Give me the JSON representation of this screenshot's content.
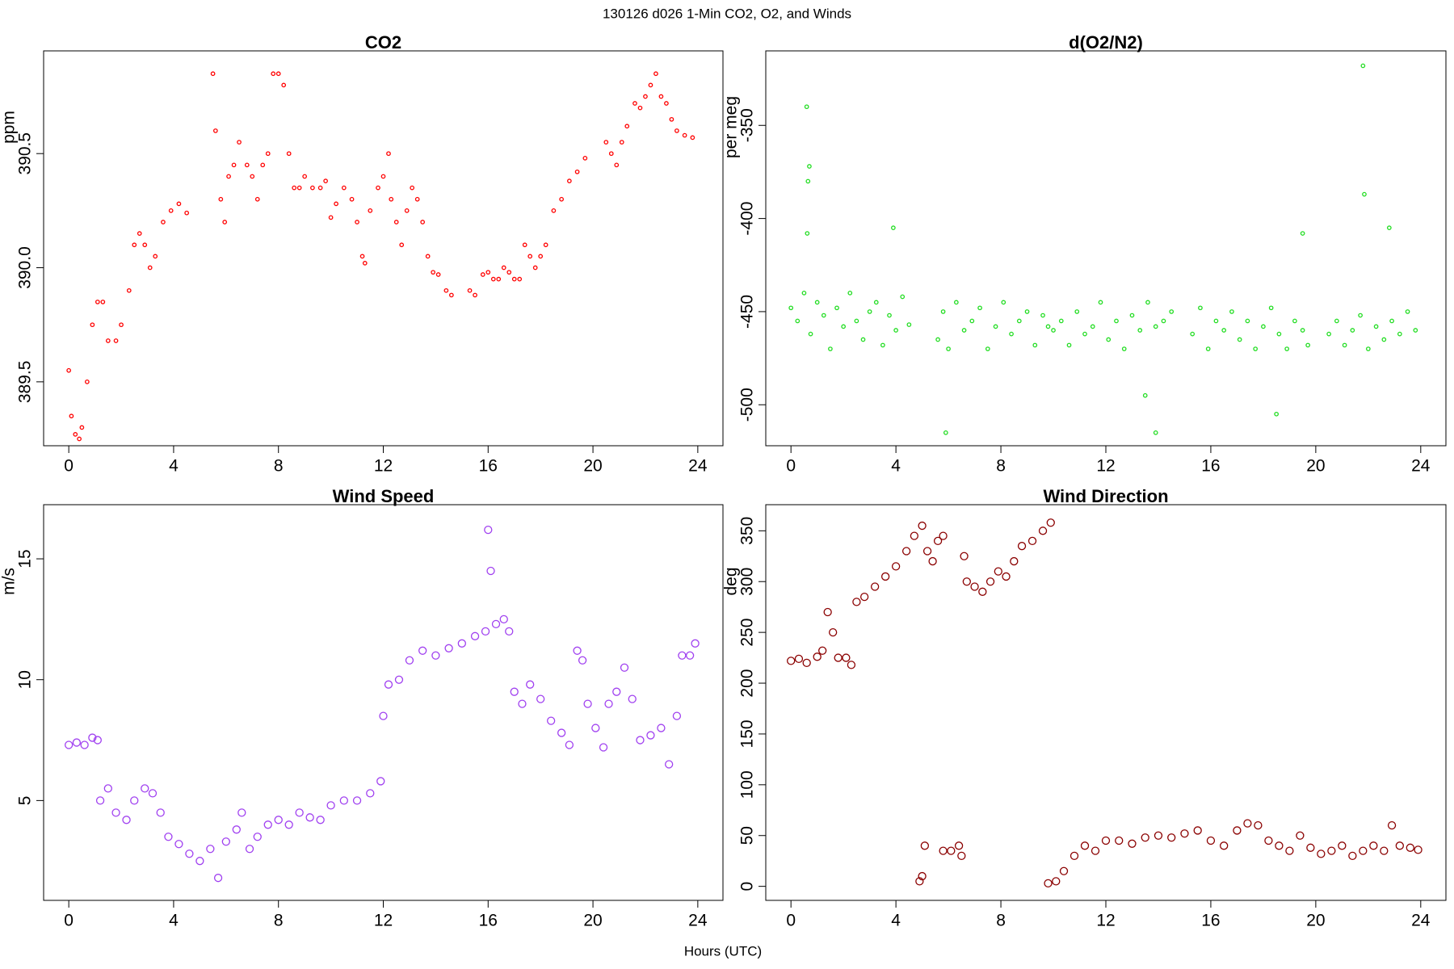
{
  "title": "130126   d026   1-Min CO2, O2, and Winds",
  "xlabel": "Hours (UTC)",
  "chart_data": [
    {
      "type": "scatter",
      "title": "CO2",
      "ylabel": "ppm",
      "color": "#ff0000",
      "marker_size": 2.2,
      "xlim": [
        -0.96,
        24.96
      ],
      "ylim": [
        389.22,
        390.95
      ],
      "xticks": [
        0,
        4,
        8,
        12,
        16,
        20,
        24
      ],
      "yticks": [
        389.5,
        {
          "value": 390,
          "label": "390.0"
        },
        390.5
      ],
      "x": [
        0,
        0.1,
        0.25,
        0.4,
        0.5,
        0.7,
        0.9,
        1.1,
        1.3,
        1.5,
        1.8,
        2.0,
        2.3,
        2.5,
        2.7,
        2.9,
        3.1,
        3.3,
        3.6,
        3.9,
        4.2,
        4.5,
        5.5,
        5.6,
        5.8,
        5.95,
        6.1,
        6.3,
        6.5,
        6.8,
        7.0,
        7.2,
        7.4,
        7.6,
        7.8,
        8.0,
        8.2,
        8.4,
        8.6,
        8.8,
        9.0,
        9.3,
        9.6,
        9.8,
        10.0,
        10.2,
        10.5,
        10.8,
        11.0,
        11.2,
        11.3,
        11.5,
        11.8,
        12.0,
        12.2,
        12.3,
        12.5,
        12.7,
        12.9,
        13.1,
        13.3,
        13.5,
        13.7,
        13.9,
        14.1,
        14.4,
        14.6,
        15.3,
        15.5,
        15.8,
        16.0,
        16.2,
        16.4,
        16.6,
        16.8,
        17.0,
        17.2,
        17.4,
        17.6,
        17.8,
        18.0,
        18.2,
        18.5,
        18.8,
        19.1,
        19.4,
        19.7,
        20.5,
        20.7,
        20.9,
        21.1,
        21.3,
        21.6,
        21.8,
        22.0,
        22.2,
        22.4,
        22.6,
        22.8,
        23.0,
        23.2,
        23.5,
        23.8
      ],
      "values": [
        389.55,
        389.35,
        389.27,
        389.25,
        389.3,
        389.5,
        389.75,
        389.85,
        389.85,
        389.68,
        389.68,
        389.75,
        389.9,
        390.1,
        390.15,
        390.1,
        390.0,
        390.05,
        390.2,
        390.25,
        390.28,
        390.24,
        390.85,
        390.6,
        390.3,
        390.2,
        390.4,
        390.45,
        390.55,
        390.45,
        390.4,
        390.3,
        390.45,
        390.5,
        390.85,
        390.85,
        390.8,
        390.5,
        390.35,
        390.35,
        390.4,
        390.35,
        390.35,
        390.38,
        390.22,
        390.28,
        390.35,
        390.3,
        390.2,
        390.05,
        390.02,
        390.25,
        390.35,
        390.4,
        390.5,
        390.3,
        390.2,
        390.1,
        390.25,
        390.35,
        390.3,
        390.2,
        390.05,
        389.98,
        389.97,
        389.9,
        389.88,
        389.9,
        389.88,
        389.97,
        389.98,
        389.95,
        389.95,
        390.0,
        389.98,
        389.95,
        389.95,
        390.1,
        390.05,
        390.0,
        390.05,
        390.1,
        390.25,
        390.3,
        390.38,
        390.42,
        390.48,
        390.55,
        390.5,
        390.45,
        390.55,
        390.62,
        390.72,
        390.7,
        390.75,
        390.8,
        390.85,
        390.75,
        390.72,
        390.65,
        390.6,
        390.58,
        390.57
      ]
    },
    {
      "type": "scatter",
      "title": "d(O2/N2)",
      "ylabel": "per meg",
      "color": "#22dd22",
      "marker_size": 2.2,
      "xlim": [
        -0.96,
        24.96
      ],
      "ylim": [
        -522,
        -310
      ],
      "xticks": [
        0,
        4,
        8,
        12,
        16,
        20,
        24
      ],
      "yticks": [
        -500,
        -450,
        -400,
        -350
      ],
      "x": [
        0,
        0.25,
        0.5,
        0.75,
        1.0,
        1.25,
        1.5,
        1.75,
        2.0,
        2.25,
        2.5,
        2.75,
        3.0,
        3.25,
        3.5,
        3.75,
        4.0,
        4.25,
        4.5,
        0.6,
        0.7,
        0.65,
        0.62,
        3.9,
        5.6,
        5.8,
        6.0,
        6.3,
        6.6,
        6.9,
        7.2,
        7.5,
        7.8,
        8.1,
        8.4,
        8.7,
        9.0,
        9.3,
        9.6,
        9.8,
        5.9,
        10.0,
        10.3,
        10.6,
        10.9,
        11.2,
        11.5,
        11.8,
        12.1,
        12.4,
        12.7,
        13.0,
        13.3,
        13.6,
        13.9,
        14.2,
        14.5,
        13.9,
        13.5,
        15.3,
        15.6,
        15.9,
        16.2,
        16.5,
        16.8,
        17.1,
        17.4,
        17.7,
        18.0,
        18.3,
        18.6,
        18.9,
        19.2,
        19.5,
        19.7,
        18.5,
        19.5,
        20.5,
        20.8,
        21.1,
        21.4,
        21.7,
        22.0,
        22.3,
        22.6,
        22.9,
        23.2,
        23.5,
        23.8,
        21.8,
        21.85,
        22.8
      ],
      "values": [
        -448,
        -455,
        -440,
        -462,
        -445,
        -452,
        -470,
        -448,
        -458,
        -440,
        -455,
        -465,
        -450,
        -445,
        -468,
        -452,
        -460,
        -442,
        -457,
        -340,
        -372,
        -380,
        -408,
        -405,
        -465,
        -450,
        -470,
        -445,
        -460,
        -455,
        -448,
        -470,
        -458,
        -445,
        -462,
        -455,
        -450,
        -468,
        -452,
        -458,
        -515,
        -460,
        -455,
        -468,
        -450,
        -462,
        -458,
        -445,
        -465,
        -455,
        -470,
        -452,
        -460,
        -445,
        -458,
        -455,
        -450,
        -515,
        -495,
        -462,
        -448,
        -470,
        -455,
        -460,
        -450,
        -465,
        -455,
        -470,
        -458,
        -448,
        -462,
        -470,
        -455,
        -460,
        -468,
        -505,
        -408,
        -462,
        -455,
        -468,
        -460,
        -452,
        -470,
        -458,
        -465,
        -455,
        -462,
        -450,
        -460,
        -318,
        -387,
        -405
      ]
    },
    {
      "type": "scatter",
      "title": "Wind Speed",
      "ylabel": "m/s",
      "color": "#a040f0",
      "marker_size": 4.5,
      "xlim": [
        -0.96,
        24.96
      ],
      "ylim": [
        0.87,
        17.24
      ],
      "xticks": [
        0,
        4,
        8,
        12,
        16,
        20,
        24
      ],
      "yticks": [
        5,
        10,
        15
      ],
      "x": [
        0,
        0.3,
        0.6,
        0.9,
        1.1,
        1.2,
        1.5,
        1.8,
        2.2,
        2.5,
        2.9,
        3.2,
        3.5,
        3.8,
        4.2,
        4.6,
        5.0,
        5.4,
        5.7,
        6.0,
        6.4,
        6.6,
        6.9,
        7.2,
        7.6,
        8.0,
        8.4,
        8.8,
        9.2,
        9.6,
        10.0,
        10.5,
        11.0,
        11.5,
        11.9,
        12.0,
        12.2,
        12.6,
        13.0,
        13.5,
        14.0,
        14.5,
        15.0,
        15.5,
        15.9,
        16.0,
        16.1,
        16.3,
        16.6,
        16.8,
        17.0,
        17.3,
        17.6,
        18.0,
        18.4,
        18.8,
        19.1,
        19.4,
        19.6,
        19.8,
        20.1,
        20.4,
        20.6,
        20.9,
        21.2,
        21.5,
        21.8,
        22.2,
        22.6,
        22.9,
        23.2,
        23.4,
        23.7,
        23.9
      ],
      "values": [
        7.3,
        7.4,
        7.3,
        7.6,
        7.5,
        5.0,
        5.5,
        4.5,
        4.2,
        5.0,
        5.5,
        5.3,
        4.5,
        3.5,
        3.2,
        2.8,
        2.5,
        3.0,
        1.8,
        3.3,
        3.8,
        4.5,
        3.0,
        3.5,
        4.0,
        4.2,
        4.0,
        4.5,
        4.3,
        4.2,
        4.8,
        5.0,
        5.0,
        5.3,
        5.8,
        8.5,
        9.8,
        10.0,
        10.8,
        11.2,
        11.0,
        11.3,
        11.5,
        11.8,
        12.0,
        16.2,
        14.5,
        12.3,
        12.5,
        12.0,
        9.5,
        9.0,
        9.8,
        9.2,
        8.3,
        7.8,
        7.3,
        11.2,
        10.8,
        9.0,
        8.0,
        7.2,
        9.0,
        9.5,
        10.5,
        9.2,
        7.5,
        7.7,
        8.0,
        6.5,
        8.5,
        11.0,
        11.0,
        11.5
      ]
    },
    {
      "type": "scatter",
      "title": "Wind Direction",
      "ylabel": "deg",
      "color": "#8b0000",
      "marker_size": 4.5,
      "xlim": [
        -0.96,
        24.96
      ],
      "ylim": [
        -13.8,
        375.7
      ],
      "xticks": [
        0,
        4,
        8,
        12,
        16,
        20,
        24
      ],
      "yticks": [
        0,
        50,
        100,
        150,
        200,
        250,
        300,
        350
      ],
      "x": [
        0,
        0.3,
        0.6,
        1.0,
        1.2,
        1.4,
        1.6,
        1.8,
        2.1,
        2.3,
        2.5,
        2.8,
        3.2,
        3.6,
        4.0,
        4.4,
        4.7,
        5.0,
        5.2,
        5.4,
        5.6,
        5.8,
        4.9,
        5.0,
        5.1,
        5.8,
        6.1,
        6.4,
        6.5,
        6.6,
        6.7,
        7.0,
        7.3,
        7.6,
        7.9,
        8.2,
        8.5,
        8.8,
        9.2,
        9.6,
        9.9,
        9.8,
        10.1,
        10.4,
        10.8,
        11.2,
        11.6,
        12.0,
        12.5,
        13.0,
        13.5,
        14.0,
        14.5,
        15.0,
        15.5,
        16.0,
        16.5,
        17.0,
        17.4,
        17.8,
        18.2,
        18.6,
        19.0,
        19.4,
        19.8,
        20.2,
        20.6,
        21.0,
        21.4,
        21.8,
        22.2,
        22.6,
        22.9,
        23.2,
        23.6,
        23.9
      ],
      "values": [
        222,
        224,
        220,
        226,
        232,
        270,
        250,
        225,
        225,
        218,
        280,
        285,
        295,
        305,
        315,
        330,
        345,
        355,
        330,
        320,
        340,
        345,
        5,
        10,
        40,
        35,
        35,
        40,
        30,
        325,
        300,
        295,
        290,
        300,
        310,
        305,
        320,
        335,
        340,
        350,
        358,
        3,
        5,
        15,
        30,
        40,
        35,
        45,
        45,
        42,
        48,
        50,
        48,
        52,
        55,
        45,
        40,
        55,
        62,
        60,
        45,
        40,
        35,
        50,
        38,
        32,
        35,
        40,
        30,
        35,
        40,
        35,
        60,
        40,
        38,
        36
      ]
    }
  ]
}
